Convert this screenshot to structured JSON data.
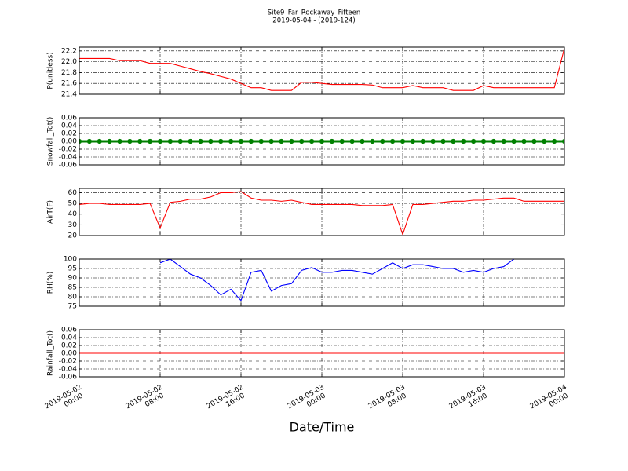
{
  "title": "Site9_Far_Rockaway_Fifteen",
  "subtitle": "2019-05-04 - (2019-124)",
  "xlabel": "Date/Time",
  "chart_data": [
    {
      "type": "line",
      "ylabel": "P(unitless)",
      "color": "#ff0000",
      "grid": true,
      "xlim": [
        "2019-05-02 00:00",
        "2019-05-04 00:00"
      ],
      "xticks": [
        "2019-05-02 00:00",
        "2019-05-02 08:00",
        "2019-05-02 16:00",
        "2019-05-03 00:00",
        "2019-05-03 08:00",
        "2019-05-03 16:00",
        "2019-05-04 00:00"
      ],
      "ylim": [
        21.4,
        22.27
      ],
      "yticks": [
        21.4,
        21.6,
        21.8,
        {
          "value": 22.0,
          "label": "22.0"
        },
        22.2
      ],
      "x": [
        "2019-05-02 00:00",
        "2019-05-02 01:00",
        "2019-05-02 02:00",
        "2019-05-02 03:00",
        "2019-05-02 04:00",
        "2019-05-02 05:00",
        "2019-05-02 06:00",
        "2019-05-02 07:00",
        "2019-05-02 08:00",
        "2019-05-02 09:00",
        "2019-05-02 10:00",
        "2019-05-02 11:00",
        "2019-05-02 12:00",
        "2019-05-02 13:00",
        "2019-05-02 14:00",
        "2019-05-02 15:00",
        "2019-05-02 16:00",
        "2019-05-02 17:00",
        "2019-05-02 18:00",
        "2019-05-02 19:00",
        "2019-05-02 20:00",
        "2019-05-02 21:00",
        "2019-05-02 22:00",
        "2019-05-02 23:00",
        "2019-05-03 00:00",
        "2019-05-03 01:00",
        "2019-05-03 02:00",
        "2019-05-03 03:00",
        "2019-05-03 04:00",
        "2019-05-03 05:00",
        "2019-05-03 06:00",
        "2019-05-03 07:00",
        "2019-05-03 08:00",
        "2019-05-03 09:00",
        "2019-05-03 10:00",
        "2019-05-03 11:00",
        "2019-05-03 12:00",
        "2019-05-03 13:00",
        "2019-05-03 14:00",
        "2019-05-03 15:00",
        "2019-05-03 16:00",
        "2019-05-03 17:00",
        "2019-05-03 18:00",
        "2019-05-03 19:00",
        "2019-05-03 20:00",
        "2019-05-03 21:00",
        "2019-05-03 22:00",
        "2019-05-03 23:00",
        "2019-05-04 00:00"
      ],
      "values": [
        22.06,
        22.06,
        22.06,
        22.06,
        22.02,
        22.02,
        22.02,
        21.97,
        21.97,
        21.97,
        21.92,
        21.87,
        21.82,
        21.78,
        21.73,
        21.68,
        21.6,
        21.52,
        21.52,
        21.47,
        21.47,
        21.47,
        21.62,
        21.62,
        21.6,
        21.58,
        21.58,
        21.58,
        21.58,
        21.57,
        21.52,
        21.52,
        21.52,
        21.56,
        21.52,
        21.52,
        21.52,
        21.47,
        21.47,
        21.47,
        21.56,
        21.52,
        21.52,
        21.52,
        21.52,
        21.52,
        21.52,
        21.52,
        22.25
      ]
    },
    {
      "type": "line",
      "ylabel": "Snowfall_Tot()",
      "color": "#008000",
      "markers": true,
      "grid": true,
      "xlim": [
        "2019-05-02 00:00",
        "2019-05-04 00:00"
      ],
      "xticks": [
        "2019-05-02 00:00",
        "2019-05-02 08:00",
        "2019-05-02 16:00",
        "2019-05-03 00:00",
        "2019-05-03 08:00",
        "2019-05-03 16:00",
        "2019-05-04 00:00"
      ],
      "ylim": [
        -0.06,
        0.06
      ],
      "yticks": [
        -0.06,
        -0.04,
        -0.02,
        {
          "value": 0,
          "label": "0.00"
        },
        0.02,
        0.04,
        0.06
      ],
      "x": [
        "2019-05-02 00:00",
        "2019-05-02 01:00",
        "2019-05-02 02:00",
        "2019-05-02 03:00",
        "2019-05-02 04:00",
        "2019-05-02 05:00",
        "2019-05-02 06:00",
        "2019-05-02 07:00",
        "2019-05-02 08:00",
        "2019-05-02 09:00",
        "2019-05-02 10:00",
        "2019-05-02 11:00",
        "2019-05-02 12:00",
        "2019-05-02 13:00",
        "2019-05-02 14:00",
        "2019-05-02 15:00",
        "2019-05-02 16:00",
        "2019-05-02 17:00",
        "2019-05-02 18:00",
        "2019-05-02 19:00",
        "2019-05-02 20:00",
        "2019-05-02 21:00",
        "2019-05-02 22:00",
        "2019-05-02 23:00",
        "2019-05-03 00:00",
        "2019-05-03 01:00",
        "2019-05-03 02:00",
        "2019-05-03 03:00",
        "2019-05-03 04:00",
        "2019-05-03 05:00",
        "2019-05-03 06:00",
        "2019-05-03 07:00",
        "2019-05-03 08:00",
        "2019-05-03 09:00",
        "2019-05-03 10:00",
        "2019-05-03 11:00",
        "2019-05-03 12:00",
        "2019-05-03 13:00",
        "2019-05-03 14:00",
        "2019-05-03 15:00",
        "2019-05-03 16:00",
        "2019-05-03 17:00",
        "2019-05-03 18:00",
        "2019-05-03 19:00",
        "2019-05-03 20:00",
        "2019-05-03 21:00",
        "2019-05-03 22:00",
        "2019-05-03 23:00",
        "2019-05-04 00:00"
      ],
      "values": [
        0,
        0,
        0,
        0,
        0,
        0,
        0,
        0,
        0,
        0,
        0,
        0,
        0,
        0,
        0,
        0,
        0,
        0,
        0,
        0,
        0,
        0,
        0,
        0,
        0,
        0,
        0,
        0,
        0,
        0,
        0,
        0,
        0,
        0,
        0,
        0,
        0,
        0,
        0,
        0,
        0,
        0,
        0,
        0,
        0,
        0,
        0,
        0,
        0
      ]
    },
    {
      "type": "line",
      "ylabel": "AirT(F)",
      "color": "#ff0000",
      "grid": true,
      "xlim": [
        "2019-05-02 00:00",
        "2019-05-04 00:00"
      ],
      "xticks": [
        "2019-05-02 00:00",
        "2019-05-02 08:00",
        "2019-05-02 16:00",
        "2019-05-03 00:00",
        "2019-05-03 08:00",
        "2019-05-03 16:00",
        "2019-05-04 00:00"
      ],
      "ylim": [
        20,
        64
      ],
      "yticks": [
        20,
        30,
        40,
        50,
        60
      ],
      "x": [
        "2019-05-02 00:00",
        "2019-05-02 01:00",
        "2019-05-02 02:00",
        "2019-05-02 03:00",
        "2019-05-02 04:00",
        "2019-05-02 05:00",
        "2019-05-02 06:00",
        "2019-05-02 07:00",
        "2019-05-02 08:00",
        "2019-05-02 09:00",
        "2019-05-02 10:00",
        "2019-05-02 11:00",
        "2019-05-02 12:00",
        "2019-05-02 13:00",
        "2019-05-02 14:00",
        "2019-05-02 15:00",
        "2019-05-02 16:00",
        "2019-05-02 17:00",
        "2019-05-02 18:00",
        "2019-05-02 19:00",
        "2019-05-02 20:00",
        "2019-05-02 21:00",
        "2019-05-02 22:00",
        "2019-05-02 23:00",
        "2019-05-03 00:00",
        "2019-05-03 01:00",
        "2019-05-03 02:00",
        "2019-05-03 03:00",
        "2019-05-03 04:00",
        "2019-05-03 05:00",
        "2019-05-03 06:00",
        "2019-05-03 07:00",
        "2019-05-03 08:00",
        "2019-05-03 09:00",
        "2019-05-03 10:00",
        "2019-05-03 11:00",
        "2019-05-03 12:00",
        "2019-05-03 13:00",
        "2019-05-03 14:00",
        "2019-05-03 15:00",
        "2019-05-03 16:00",
        "2019-05-03 17:00",
        "2019-05-03 18:00",
        "2019-05-03 19:00",
        "2019-05-03 20:00",
        "2019-05-03 21:00",
        "2019-05-03 22:00",
        "2019-05-03 23:00",
        "2019-05-04 00:00"
      ],
      "values": [
        49,
        50,
        50,
        49,
        49,
        49,
        49,
        50,
        27,
        51,
        52,
        54,
        54,
        56,
        60,
        60,
        61,
        55,
        53,
        53,
        52,
        53,
        51,
        49,
        49,
        49,
        49,
        49,
        48,
        48,
        48,
        49,
        21,
        49,
        49,
        50,
        51,
        52,
        52,
        53,
        53,
        54,
        55,
        55,
        52,
        52,
        52,
        52,
        52
      ]
    },
    {
      "type": "line",
      "ylabel": "RH(%)",
      "color": "#0000ff",
      "grid": true,
      "xlim": [
        "2019-05-02 00:00",
        "2019-05-04 00:00"
      ],
      "xticks": [
        "2019-05-02 00:00",
        "2019-05-02 08:00",
        "2019-05-02 16:00",
        "2019-05-03 00:00",
        "2019-05-03 08:00",
        "2019-05-03 16:00",
        "2019-05-04 00:00"
      ],
      "ylim": [
        75,
        100
      ],
      "yticks": [
        75,
        80,
        85,
        90,
        95,
        100
      ],
      "x": [
        "2019-05-02 00:00",
        "2019-05-02 01:00",
        "2019-05-02 02:00",
        "2019-05-02 03:00",
        "2019-05-02 04:00",
        "2019-05-02 05:00",
        "2019-05-02 06:00",
        "2019-05-02 07:00",
        "2019-05-02 08:00",
        "2019-05-02 09:00",
        "2019-05-02 10:00",
        "2019-05-02 11:00",
        "2019-05-02 12:00",
        "2019-05-02 13:00",
        "2019-05-02 14:00",
        "2019-05-02 15:00",
        "2019-05-02 16:00",
        "2019-05-02 17:00",
        "2019-05-02 18:00",
        "2019-05-02 19:00",
        "2019-05-02 20:00",
        "2019-05-02 21:00",
        "2019-05-02 22:00",
        "2019-05-02 23:00",
        "2019-05-03 00:00",
        "2019-05-03 01:00",
        "2019-05-03 02:00",
        "2019-05-03 03:00",
        "2019-05-03 04:00",
        "2019-05-03 05:00",
        "2019-05-03 06:00",
        "2019-05-03 07:00",
        "2019-05-03 08:00",
        "2019-05-03 09:00",
        "2019-05-03 10:00",
        "2019-05-03 11:00",
        "2019-05-03 12:00",
        "2019-05-03 13:00",
        "2019-05-03 14:00",
        "2019-05-03 15:00",
        "2019-05-03 16:00",
        "2019-05-03 17:00",
        "2019-05-03 18:00",
        "2019-05-03 19:00",
        "2019-05-03 20:00",
        "2019-05-03 21:00",
        "2019-05-03 22:00",
        "2019-05-03 23:00",
        "2019-05-04 00:00"
      ],
      "values": [
        null,
        null,
        null,
        null,
        null,
        null,
        null,
        null,
        98,
        100,
        96,
        92,
        90,
        86,
        81,
        84,
        78,
        93,
        94,
        83,
        86,
        87,
        94,
        95.5,
        93,
        93,
        94,
        94,
        93,
        92,
        95,
        98,
        95,
        97,
        97,
        96,
        95,
        95,
        93,
        94,
        93,
        95,
        96,
        100,
        null,
        null,
        null,
        null,
        null
      ]
    },
    {
      "type": "line",
      "ylabel": "Rainfall_Tot()",
      "color": "#ff0000",
      "grid": true,
      "xlim": [
        "2019-05-02 00:00",
        "2019-05-04 00:00"
      ],
      "xticks": [
        "2019-05-02 00:00",
        "2019-05-02 08:00",
        "2019-05-02 16:00",
        "2019-05-03 00:00",
        "2019-05-03 08:00",
        "2019-05-03 16:00",
        "2019-05-04 00:00"
      ],
      "ylim": [
        -0.06,
        0.06
      ],
      "yticks": [
        -0.06,
        -0.04,
        -0.02,
        {
          "value": 0,
          "label": "0.00"
        },
        0.02,
        0.04,
        0.06
      ],
      "x": [
        "2019-05-02 00:00",
        "2019-05-02 01:00",
        "2019-05-02 02:00",
        "2019-05-02 03:00",
        "2019-05-02 04:00",
        "2019-05-02 05:00",
        "2019-05-02 06:00",
        "2019-05-02 07:00",
        "2019-05-02 08:00",
        "2019-05-02 09:00",
        "2019-05-02 10:00",
        "2019-05-02 11:00",
        "2019-05-02 12:00",
        "2019-05-02 13:00",
        "2019-05-02 14:00",
        "2019-05-02 15:00",
        "2019-05-02 16:00",
        "2019-05-02 17:00",
        "2019-05-02 18:00",
        "2019-05-02 19:00",
        "2019-05-02 20:00",
        "2019-05-02 21:00",
        "2019-05-02 22:00",
        "2019-05-02 23:00",
        "2019-05-03 00:00",
        "2019-05-03 01:00",
        "2019-05-03 02:00",
        "2019-05-03 03:00",
        "2019-05-03 04:00",
        "2019-05-03 05:00",
        "2019-05-03 06:00",
        "2019-05-03 07:00",
        "2019-05-03 08:00",
        "2019-05-03 09:00",
        "2019-05-03 10:00",
        "2019-05-03 11:00",
        "2019-05-03 12:00",
        "2019-05-03 13:00",
        "2019-05-03 14:00",
        "2019-05-03 15:00",
        "2019-05-03 16:00",
        "2019-05-03 17:00",
        "2019-05-03 18:00",
        "2019-05-03 19:00",
        "2019-05-03 20:00",
        "2019-05-03 21:00",
        "2019-05-03 22:00",
        "2019-05-03 23:00",
        "2019-05-04 00:00"
      ],
      "values": [
        0,
        0,
        0,
        0,
        0,
        0,
        0,
        0,
        0,
        0,
        0,
        0,
        0,
        0,
        0,
        0,
        0,
        0,
        0,
        0,
        0,
        0,
        0,
        0,
        0,
        0,
        0,
        0,
        0,
        0,
        0,
        0,
        0,
        0,
        0,
        0,
        0,
        0,
        0,
        0,
        0,
        0,
        0,
        0,
        0,
        0,
        0,
        0,
        0
      ],
      "show_xtick_labels": true
    }
  ]
}
